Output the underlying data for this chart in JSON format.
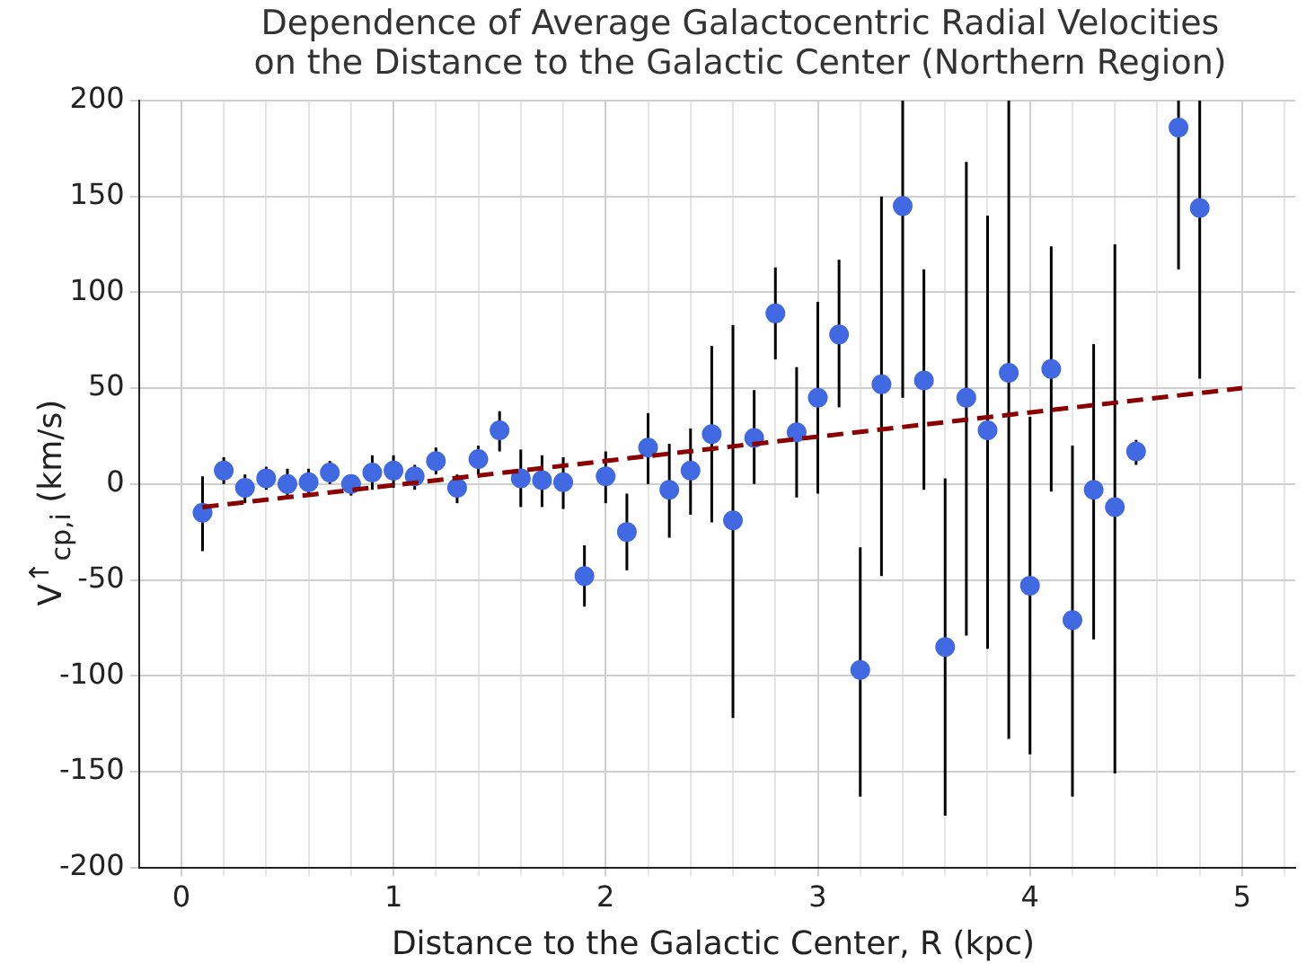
{
  "chart_data": {
    "type": "scatter",
    "title": "Dependence of Average Galactocentric Radial Velocities\non the Distance to the Galactic Center (Northern Region)",
    "xlabel": "Distance to the Galactic Center, R (kpc)",
    "ylabel": "V$^{↑}$$_{cp,i}$ (km/s)",
    "xlim": [
      -0.2,
      5.25
    ],
    "ylim": [
      -200,
      200
    ],
    "xticks": [
      0,
      1,
      2,
      3,
      4,
      5,
      {
        "value": 0.2,
        "label": null
      },
      {
        "value": 0.4,
        "label": null
      },
      {
        "value": 0.6,
        "label": null
      },
      {
        "value": 0.8,
        "label": null
      },
      {
        "value": 1.2,
        "label": null
      },
      {
        "value": 1.4,
        "label": null
      },
      {
        "value": 1.6,
        "label": null
      },
      {
        "value": 1.8,
        "label": null
      },
      {
        "value": 2.2,
        "label": null
      },
      {
        "value": 2.4,
        "label": null
      },
      {
        "value": 2.6,
        "label": null
      },
      {
        "value": 2.8,
        "label": null
      },
      {
        "value": 3.2,
        "label": null
      },
      {
        "value": 3.4,
        "label": null
      },
      {
        "value": 3.6,
        "label": null
      },
      {
        "value": 3.8,
        "label": null
      },
      {
        "value": 4.2,
        "label": null
      },
      {
        "value": 4.4,
        "label": null
      },
      {
        "value": 4.6,
        "label": null
      },
      {
        "value": 4.8,
        "label": null
      },
      {
        "value": 5.2,
        "label": null
      }
    ],
    "yticks": [
      -200,
      -150,
      -100,
      -50,
      0,
      50,
      100,
      150,
      200
    ],
    "grid": true,
    "legend": false,
    "marker": "circle",
    "series": [
      {
        "color": "#4169e1",
        "x": [
          0.1,
          0.2,
          0.3,
          0.4,
          0.5,
          0.6,
          0.7,
          0.8,
          0.9,
          1.0,
          1.1,
          1.2,
          1.3,
          1.4,
          1.5,
          1.6,
          1.7,
          1.8,
          1.9,
          2.0,
          2.1,
          2.2,
          2.3,
          2.4,
          2.5,
          2.6,
          2.7,
          2.8,
          2.9,
          3.0,
          3.1,
          3.2,
          3.3,
          3.4,
          3.5,
          3.6,
          3.7,
          3.8,
          3.9,
          4.0,
          4.1,
          4.2,
          4.3,
          4.4,
          4.5,
          4.6,
          4.7,
          4.8
        ],
        "values": [
          -15,
          7,
          -2,
          3,
          0,
          1,
          6,
          0,
          6,
          7,
          4,
          12,
          -2,
          13,
          28,
          3,
          2,
          1,
          -48,
          4,
          -25,
          19,
          -3,
          7,
          26,
          -19,
          24,
          89,
          27,
          45,
          78,
          -97,
          52,
          145,
          54,
          -85,
          45,
          28,
          58,
          -53,
          60,
          -71,
          -3,
          -12,
          17,
          null,
          186,
          144
        ],
        "errors": [
          [
            -35,
            4
          ],
          [
            0,
            14
          ],
          [
            -10,
            5
          ],
          [
            -3,
            9
          ],
          [
            -7,
            8
          ],
          [
            -6,
            8
          ],
          [
            0,
            12
          ],
          [
            -6,
            5
          ],
          [
            -3,
            15
          ],
          [
            -2,
            15
          ],
          [
            -3,
            10
          ],
          [
            5,
            19
          ],
          [
            -10,
            5
          ],
          [
            5,
            20
          ],
          [
            17,
            38
          ],
          [
            -12,
            18
          ],
          [
            -12,
            15
          ],
          [
            -13,
            14
          ],
          [
            -64,
            -32
          ],
          [
            -10,
            17
          ],
          [
            -45,
            -5
          ],
          [
            0,
            37
          ],
          [
            -28,
            21
          ],
          [
            -16,
            29
          ],
          [
            -20,
            72
          ],
          [
            -122,
            83
          ],
          [
            0,
            49
          ],
          [
            65,
            113
          ],
          [
            -7,
            61
          ],
          [
            -5,
            95
          ],
          [
            40,
            117
          ],
          [
            -163,
            -33
          ],
          [
            -48,
            150
          ],
          [
            45,
            200
          ],
          [
            -3,
            112
          ],
          [
            -173,
            3
          ],
          [
            -79,
            168
          ],
          [
            -86,
            140
          ],
          [
            -133,
            200
          ],
          [
            -141,
            35
          ],
          [
            -4,
            124
          ],
          [
            -163,
            20
          ],
          [
            -81,
            73
          ],
          [
            -151,
            125
          ],
          [
            10,
            23
          ],
          null,
          [
            112,
            200
          ],
          [
            55,
            200
          ]
        ]
      },
      {
        "type": "line",
        "color": "#8b0000",
        "x": [
          0.1,
          5.0
        ],
        "values": [
          -12,
          50
        ],
        "marker": "none",
        "line_style": "dashed"
      }
    ]
  }
}
